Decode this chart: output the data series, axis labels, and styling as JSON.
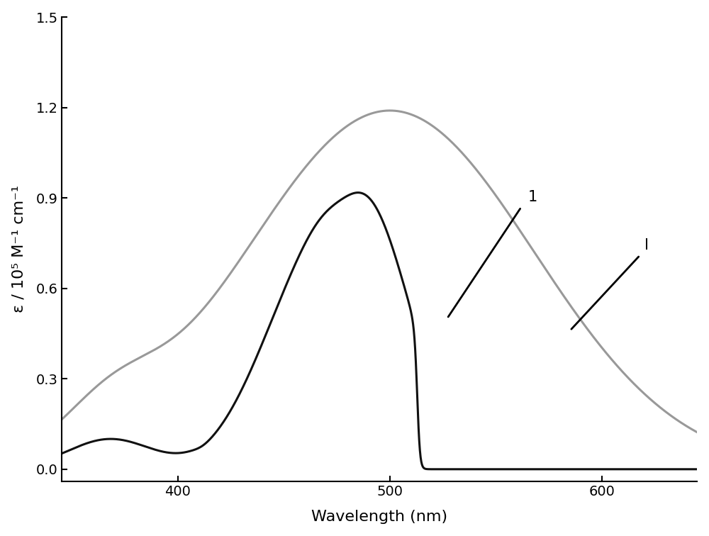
{
  "title": "",
  "xlabel": "Wavelength (nm)",
  "ylabel": "ε / 10⁵ M⁻¹ cm⁻¹",
  "xlim": [
    345,
    645
  ],
  "ylim": [
    -0.04,
    1.5
  ],
  "yticks": [
    0.0,
    0.3,
    0.6,
    0.9,
    1.2,
    1.5
  ],
  "xticks": [
    400,
    500,
    600
  ],
  "background_color": "#ffffff",
  "curve1_color": "#999999",
  "curve2_color": "#111111",
  "annotation1_label": "1",
  "annotation2_label": "I"
}
